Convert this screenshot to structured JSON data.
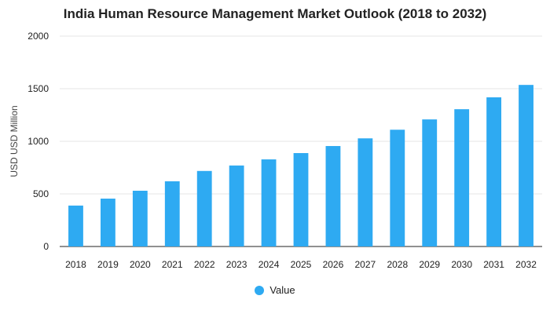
{
  "chart_data": {
    "type": "bar",
    "title": "India Human Resource Management Market Outlook (2018 to 2032)",
    "xlabel": "",
    "ylabel": "USD USD Million",
    "categories": [
      "2018",
      "2019",
      "2020",
      "2021",
      "2022",
      "2023",
      "2024",
      "2025",
      "2026",
      "2027",
      "2028",
      "2029",
      "2030",
      "2031",
      "2032"
    ],
    "series": [
      {
        "name": "Value",
        "values": [
          389,
          455,
          530,
          620,
          718,
          770,
          828,
          888,
          955,
          1028,
          1110,
          1208,
          1305,
          1418,
          1536
        ]
      }
    ],
    "ylim": [
      0,
      2000
    ],
    "yticks": [
      0,
      500,
      1000,
      1500,
      2000
    ],
    "grid": true,
    "legend_position": "bottom",
    "colors": {
      "bar": "#2eaaf2",
      "grid": "#e6e6e6",
      "axis": "#222222"
    }
  }
}
